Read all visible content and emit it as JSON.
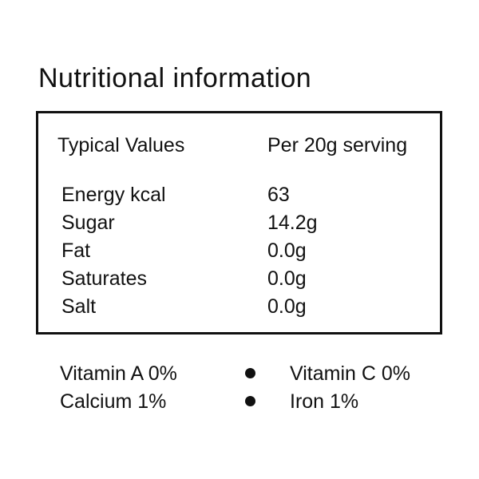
{
  "title": "Nutritional information",
  "table": {
    "header": [
      "Typical Values",
      "Per 20g serving"
    ],
    "rows": [
      [
        "Energy kcal",
        "63"
      ],
      [
        "Sugar",
        "14.2g"
      ],
      [
        "Fat",
        "0.0g"
      ],
      [
        "Saturates",
        "0.0g"
      ],
      [
        "Salt",
        "0.0g"
      ]
    ]
  },
  "footer": [
    [
      "Vitamin A 0%",
      "Vitamin C 0%"
    ],
    [
      "Calcium 1%",
      "Iron 1%"
    ]
  ]
}
